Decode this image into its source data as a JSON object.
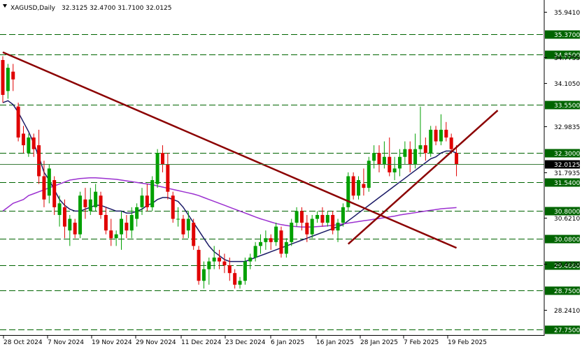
{
  "header": {
    "symbol": "XAGUSD,Daily",
    "ohlc": "32.3125 32.4700 31.7100 32.0125"
  },
  "colors": {
    "bull": "#00a000",
    "bear": "#e00000",
    "hline": "#006400",
    "trend": "#8b0000",
    "ma_fast": "#1a1a66",
    "ma_slow": "#9b30d0",
    "badge_bg": "#006400",
    "current_bg": "#000000"
  },
  "chart_data": {
    "type": "candlestick",
    "symbol": "XAGUSD",
    "timeframe": "Daily",
    "ylim": [
      27.6,
      36.25
    ],
    "x_ticks": [
      "28 Oct 2024",
      "7 Nov 2024",
      "19 Nov 2024",
      "29 Nov 2024",
      "11 Dec 2024",
      "23 Dec 2024",
      "6 Jan 2025",
      "16 Jan 2025",
      "28 Jan 2025",
      "7 Feb 2025",
      "19 Feb 2025"
    ],
    "y_ticks": [
      "35.9410",
      "34.7755",
      "34.1050",
      "32.9835",
      "31.7935",
      "30.6210",
      "29.4330",
      "28.2410"
    ],
    "horizontal_levels": [
      "35.3700",
      "34.8500",
      "33.5500",
      "32.3000",
      "31.5400",
      "30.8000",
      "30.0800",
      "29.4000",
      "28.7500",
      "27.7500"
    ],
    "current_price": "32.0125",
    "candles": [
      [
        34.7,
        34.8,
        33.6,
        33.8
      ],
      [
        33.9,
        34.6,
        33.7,
        34.5
      ],
      [
        34.4,
        34.6,
        33.9,
        34.2
      ],
      [
        33.5,
        33.6,
        32.6,
        32.7
      ],
      [
        32.8,
        33.0,
        32.3,
        32.5
      ],
      [
        32.3,
        32.8,
        32.2,
        32.7
      ],
      [
        32.7,
        32.8,
        32.2,
        32.4
      ],
      [
        32.5,
        32.9,
        31.5,
        31.7
      ],
      [
        31.7,
        32.1,
        30.9,
        31.1
      ],
      [
        31.2,
        32.0,
        31.0,
        31.9
      ],
      [
        31.6,
        31.7,
        30.7,
        30.9
      ],
      [
        30.7,
        31.2,
        30.4,
        31.0
      ],
      [
        30.9,
        31.1,
        30.1,
        30.4
      ],
      [
        30.3,
        30.7,
        29.9,
        30.6
      ],
      [
        30.5,
        30.6,
        30.1,
        30.2
      ],
      [
        30.2,
        31.3,
        30.1,
        31.2
      ],
      [
        31.1,
        31.4,
        30.6,
        30.9
      ],
      [
        30.8,
        31.4,
        30.7,
        31.1
      ],
      [
        30.9,
        31.5,
        30.8,
        31.3
      ],
      [
        31.2,
        31.3,
        30.6,
        30.7
      ],
      [
        30.7,
        30.9,
        30.2,
        30.3
      ],
      [
        30.3,
        30.6,
        29.9,
        30.1
      ],
      [
        30.1,
        30.3,
        29.9,
        30.2
      ],
      [
        30.2,
        30.8,
        29.8,
        30.6
      ],
      [
        30.5,
        30.7,
        30.1,
        30.3
      ],
      [
        30.3,
        30.9,
        30.1,
        30.7
      ],
      [
        30.6,
        31.0,
        30.4,
        30.9
      ],
      [
        30.9,
        31.4,
        30.7,
        31.2
      ],
      [
        31.2,
        31.5,
        30.8,
        30.9
      ],
      [
        30.9,
        31.7,
        30.8,
        31.6
      ],
      [
        31.5,
        32.4,
        31.4,
        32.3
      ],
      [
        32.3,
        32.5,
        31.8,
        32.0
      ],
      [
        32.0,
        32.3,
        31.1,
        31.3
      ],
      [
        31.2,
        31.3,
        30.5,
        30.6
      ],
      [
        30.6,
        30.9,
        30.4,
        30.6
      ],
      [
        30.6,
        30.7,
        30.1,
        30.2
      ],
      [
        30.3,
        30.8,
        30.1,
        30.6
      ],
      [
        30.5,
        30.6,
        29.8,
        29.9
      ],
      [
        29.8,
        29.9,
        28.9,
        29.0
      ],
      [
        29.0,
        29.5,
        28.8,
        29.3
      ],
      [
        29.3,
        29.6,
        28.9,
        29.5
      ],
      [
        29.5,
        29.9,
        29.3,
        29.6
      ],
      [
        29.6,
        29.8,
        29.3,
        29.5
      ],
      [
        29.5,
        29.7,
        29.2,
        29.4
      ],
      [
        29.4,
        29.6,
        29.0,
        29.2
      ],
      [
        29.2,
        29.3,
        28.8,
        28.9
      ],
      [
        28.9,
        29.1,
        28.8,
        29.0
      ],
      [
        29.0,
        29.6,
        28.9,
        29.5
      ],
      [
        29.5,
        29.7,
        29.3,
        29.6
      ],
      [
        29.6,
        30.0,
        29.5,
        29.9
      ],
      [
        29.9,
        30.2,
        29.7,
        30.0
      ],
      [
        30.0,
        30.3,
        29.8,
        30.1
      ],
      [
        30.1,
        30.2,
        29.8,
        30.0
      ],
      [
        30.0,
        30.5,
        29.9,
        30.4
      ],
      [
        30.3,
        30.4,
        29.6,
        29.7
      ],
      [
        29.7,
        30.1,
        29.6,
        30.0
      ],
      [
        30.0,
        30.6,
        29.9,
        30.5
      ],
      [
        30.5,
        30.9,
        30.4,
        30.8
      ],
      [
        30.8,
        30.9,
        30.3,
        30.5
      ],
      [
        30.5,
        30.7,
        30.0,
        30.2
      ],
      [
        30.2,
        30.7,
        30.1,
        30.6
      ],
      [
        30.6,
        30.8,
        30.5,
        30.7
      ],
      [
        30.7,
        30.9,
        30.4,
        30.5
      ],
      [
        30.5,
        30.8,
        30.4,
        30.7
      ],
      [
        30.7,
        30.8,
        30.2,
        30.3
      ],
      [
        30.3,
        30.6,
        30.0,
        30.5
      ],
      [
        30.5,
        31.0,
        30.4,
        30.9
      ],
      [
        30.9,
        31.8,
        30.8,
        31.7
      ],
      [
        31.7,
        31.8,
        31.1,
        31.2
      ],
      [
        31.2,
        31.7,
        31.1,
        31.6
      ],
      [
        31.5,
        31.9,
        31.2,
        31.4
      ],
      [
        31.4,
        32.2,
        31.3,
        32.1
      ],
      [
        32.1,
        32.5,
        31.9,
        32.3
      ],
      [
        32.3,
        32.5,
        31.8,
        32.0
      ],
      [
        32.0,
        32.6,
        31.9,
        32.2
      ],
      [
        32.2,
        32.7,
        31.7,
        31.8
      ],
      [
        31.8,
        32.2,
        31.6,
        31.9
      ],
      [
        31.9,
        32.4,
        31.7,
        32.2
      ],
      [
        32.2,
        32.6,
        32.0,
        32.4
      ],
      [
        32.4,
        32.6,
        31.8,
        32.0
      ],
      [
        32.0,
        32.8,
        31.9,
        32.4
      ],
      [
        32.4,
        33.5,
        32.2,
        32.5
      ],
      [
        32.5,
        32.7,
        32.1,
        32.3
      ],
      [
        32.3,
        33.0,
        32.2,
        32.9
      ],
      [
        32.9,
        33.0,
        32.5,
        32.6
      ],
      [
        32.6,
        33.3,
        32.5,
        32.9
      ],
      [
        32.9,
        33.1,
        32.6,
        32.7
      ],
      [
        32.7,
        32.8,
        32.3,
        32.4
      ],
      [
        32.3,
        32.5,
        31.7,
        32.0
      ]
    ],
    "moving_averages": [
      {
        "color": "#1a1a66",
        "values": [
          33.6,
          33.65,
          33.55,
          33.35,
          33.1,
          32.85,
          32.55,
          32.2,
          31.8,
          31.6,
          31.35,
          31.1,
          30.95,
          30.85,
          30.8,
          30.8,
          30.85,
          30.9,
          30.95,
          30.95,
          30.9,
          30.85,
          30.8,
          30.8,
          30.75,
          30.75,
          30.8,
          30.85,
          30.95,
          31.0,
          31.1,
          31.15,
          31.15,
          31.1,
          31.05,
          30.9,
          30.7,
          30.5,
          30.3,
          30.1,
          29.9,
          29.75,
          29.65,
          29.55,
          29.5,
          29.5,
          29.5,
          29.5,
          29.55,
          29.6,
          29.65,
          29.7,
          29.75,
          29.8,
          29.85,
          29.9,
          29.95,
          30.0,
          30.05,
          30.1,
          30.15,
          30.2,
          30.25,
          30.3,
          30.35,
          30.4,
          30.45,
          30.55,
          30.65,
          30.75,
          30.85,
          30.95,
          31.05,
          31.15,
          31.25,
          31.35,
          31.45,
          31.55,
          31.65,
          31.75,
          31.85,
          31.95,
          32.05,
          32.15,
          32.2,
          32.3,
          32.35,
          32.35,
          32.3
        ]
      },
      {
        "color": "#9b30d0",
        "values": [
          30.8,
          30.9,
          31.0,
          31.05,
          31.1,
          31.2,
          31.25,
          31.3,
          31.35,
          31.4,
          31.45,
          31.5,
          31.55,
          31.6,
          31.62,
          31.64,
          31.65,
          31.66,
          31.66,
          31.65,
          31.64,
          31.63,
          31.62,
          31.6,
          31.58,
          31.56,
          31.54,
          31.52,
          31.5,
          31.48,
          31.45,
          31.42,
          31.39,
          31.36,
          31.33,
          31.3,
          31.27,
          31.24,
          31.2,
          31.15,
          31.1,
          31.05,
          31.0,
          30.95,
          30.9,
          30.85,
          30.8,
          30.75,
          30.7,
          30.65,
          30.6,
          30.56,
          30.52,
          30.48,
          30.45,
          30.43,
          30.41,
          30.4,
          30.39,
          30.39,
          30.39,
          30.4,
          30.41,
          30.42,
          30.43,
          30.45,
          30.47,
          30.49,
          30.51,
          30.53,
          30.55,
          30.57,
          30.59,
          30.61,
          30.63,
          30.65,
          30.67,
          30.7,
          30.72,
          30.74,
          30.76,
          30.78,
          30.8,
          30.82,
          30.84,
          30.86,
          30.87,
          30.88,
          30.89
        ]
      }
    ],
    "trendlines": [
      {
        "from": [
          0,
          34.9
        ],
        "to": [
          88,
          29.85
        ]
      },
      {
        "from": [
          67,
          29.95
        ],
        "to": [
          96,
          33.4
        ]
      }
    ]
  }
}
